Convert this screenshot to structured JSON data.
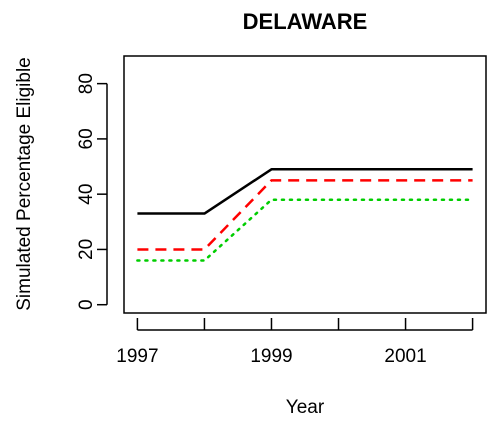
{
  "chart_data": {
    "type": "line",
    "title": "DELAWARE",
    "xlabel": "Year",
    "ylabel": "Simulated Percentage Eligible",
    "x": [
      1997,
      1998,
      1999,
      2000,
      2001,
      2002
    ],
    "xticks": [
      1997,
      1998,
      1999,
      2000,
      2001,
      2002
    ],
    "xtick_labels": [
      "1997",
      "",
      "1999",
      "",
      "2001",
      ""
    ],
    "yticks": [
      0,
      20,
      40,
      60,
      80
    ],
    "xlim": [
      1996.8,
      2002.2
    ],
    "ylim": [
      -3,
      90
    ],
    "grid": false,
    "series": [
      {
        "values": [
          33,
          33,
          49,
          49,
          49,
          49
        ],
        "color": "#000000",
        "style": "solid"
      },
      {
        "values": [
          20,
          20,
          45,
          45,
          45,
          45
        ],
        "color": "#ff0000",
        "style": "dashed"
      },
      {
        "values": [
          16,
          16,
          38,
          38,
          38,
          38
        ],
        "color": "#00cd00",
        "style": "dotted"
      }
    ]
  }
}
